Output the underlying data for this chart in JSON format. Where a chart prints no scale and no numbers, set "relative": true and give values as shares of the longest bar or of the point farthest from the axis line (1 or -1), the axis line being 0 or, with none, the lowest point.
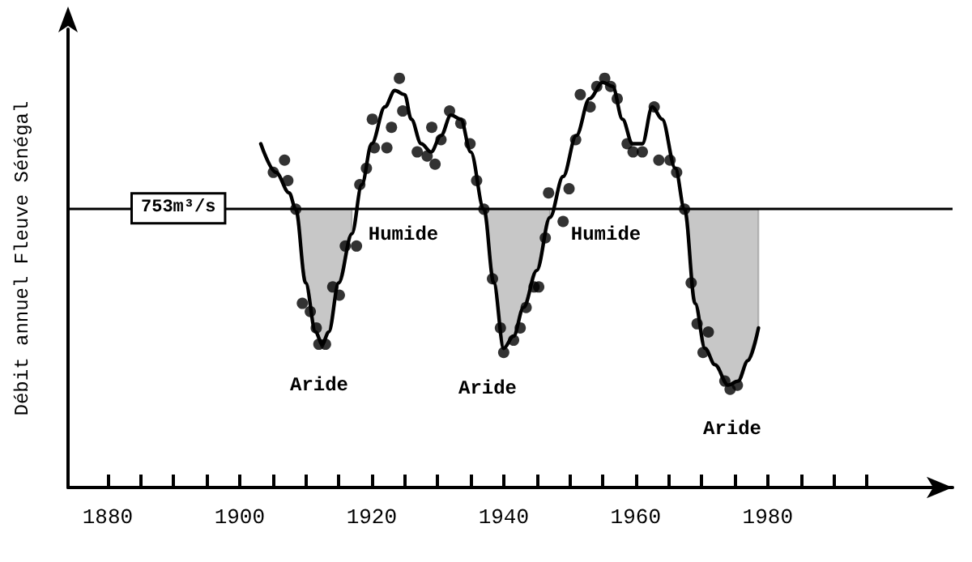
{
  "chart_data": {
    "type": "line",
    "relative": true,
    "ylabel": "Débit annuel Fleuve Sénégal",
    "xlim": [
      1874,
      2008
    ],
    "xticks": [
      1880,
      {
        "value": 1885,
        "label": null
      },
      {
        "value": 1890,
        "label": null
      },
      {
        "value": 1895,
        "label": null
      },
      1900,
      {
        "value": 1905,
        "label": null
      },
      {
        "value": 1910,
        "label": null
      },
      {
        "value": 1915,
        "label": null
      },
      1920,
      {
        "value": 1925,
        "label": null
      },
      {
        "value": 1930,
        "label": null
      },
      {
        "value": 1935,
        "label": null
      },
      1940,
      {
        "value": 1945,
        "label": null
      },
      {
        "value": 1950,
        "label": null
      },
      {
        "value": 1955,
        "label": null
      },
      1960,
      {
        "value": 1965,
        "label": null
      },
      {
        "value": 1970,
        "label": null
      },
      {
        "value": 1975,
        "label": null
      },
      1980,
      {
        "value": 1985,
        "label": null
      },
      {
        "value": 1990,
        "label": null
      },
      {
        "value": 1995,
        "label": null
      }
    ],
    "grid": false,
    "legend": false,
    "ref_lines": [
      {
        "axis": "y",
        "value": 0.68,
        "label": "753m³/s",
        "color": "#000000"
      }
    ],
    "annotations": [
      "Humide",
      "Humide",
      "Aride",
      "Aride",
      "Aride"
    ],
    "series": [
      {
        "type": "line",
        "color": "#000000",
        "marker": "none",
        "line_style": "solid",
        "x": [
          1903.2,
          1905.5,
          1907.5,
          1908.5,
          1910,
          1911.5,
          1912.5,
          1913.5,
          1915,
          1917,
          1918.5,
          1920,
          1922,
          1923.5,
          1925,
          1926,
          1927.5,
          1929,
          1930.5,
          1932,
          1933.5,
          1935,
          1937,
          1938.5,
          1940,
          1941.5,
          1943,
          1945,
          1947,
          1949,
          1951,
          1953,
          1955,
          1956.5,
          1958,
          1959.5,
          1961,
          1962.5,
          1964,
          1966,
          1967.4,
          1969,
          1970.5,
          1972,
          1974,
          1975.5,
          1977,
          1978.6
        ],
        "values": [
          0.84,
          0.77,
          0.72,
          0.68,
          0.5,
          0.38,
          0.35,
          0.38,
          0.5,
          0.62,
          0.74,
          0.84,
          0.93,
          0.97,
          0.96,
          0.9,
          0.84,
          0.82,
          0.86,
          0.91,
          0.9,
          0.82,
          0.68,
          0.5,
          0.34,
          0.37,
          0.44,
          0.53,
          0.66,
          0.76,
          0.86,
          0.95,
          0.99,
          0.98,
          0.9,
          0.84,
          0.84,
          0.93,
          0.9,
          0.78,
          0.68,
          0.45,
          0.34,
          0.3,
          0.25,
          0.26,
          0.31,
          0.39
        ],
        "lower": [
          null,
          null,
          null,
          0.68,
          0.5,
          0.38,
          0.35,
          0.38,
          0.5,
          0.62,
          null,
          null,
          null,
          null,
          null,
          null,
          null,
          null,
          null,
          null,
          null,
          null,
          0.68,
          0.5,
          0.34,
          0.37,
          0.44,
          0.53,
          0.66,
          null,
          null,
          null,
          null,
          null,
          null,
          null,
          null,
          null,
          null,
          null,
          0.68,
          0.45,
          0.34,
          0.3,
          0.25,
          0.26,
          0.31,
          0.39
        ],
        "upper": [
          null,
          null,
          null,
          0.68,
          0.68,
          0.68,
          0.68,
          0.68,
          0.68,
          0.68,
          null,
          null,
          null,
          null,
          null,
          null,
          null,
          null,
          null,
          null,
          null,
          null,
          0.68,
          0.68,
          0.68,
          0.68,
          0.68,
          0.68,
          0.68,
          null,
          null,
          null,
          null,
          null,
          null,
          null,
          null,
          null,
          null,
          null,
          0.68,
          0.68,
          0.68,
          0.68,
          0.68,
          0.68,
          0.68,
          0.68
        ]
      },
      {
        "type": "scatter",
        "color": "#000000",
        "marker": "circle",
        "x": [
          1906.8,
          1905.1,
          1907.3,
          1908.5,
          1909.5,
          1910.7,
          1911.6,
          1912,
          1913,
          1914.1,
          1915.1,
          1916,
          1917.7,
          1918.2,
          1919.2,
          1920.4,
          1922.3,
          1920.1,
          1923,
          1924.2,
          1924.7,
          1926.9,
          1928.4,
          1929.6,
          1929.1,
          1930.5,
          1931.8,
          1933.5,
          1934.9,
          1935.9,
          1937,
          1938.3,
          1939.5,
          1940,
          1941.5,
          1942.5,
          1943.4,
          1944.6,
          1945.3,
          1946.3,
          1949,
          1946.8,
          1949.9,
          1950.9,
          1951.6,
          1953.1,
          1954.1,
          1955.3,
          1956.2,
          1957.2,
          1958.7,
          1959.6,
          1961,
          1962.8,
          1963.5,
          1965.2,
          1966.2,
          1967.4,
          1968.4,
          1969.3,
          1971,
          1970.2,
          1973.5,
          1974.3,
          1975.4
        ],
        "values": [
          0.8,
          0.77,
          0.75,
          0.68,
          0.45,
          0.43,
          0.39,
          0.35,
          0.35,
          0.49,
          0.47,
          0.59,
          0.59,
          0.74,
          0.78,
          0.83,
          0.83,
          0.9,
          0.88,
          1,
          0.92,
          0.82,
          0.81,
          0.79,
          0.88,
          0.85,
          0.92,
          0.89,
          0.84,
          0.75,
          0.68,
          0.51,
          0.39,
          0.33,
          0.36,
          0.39,
          0.44,
          0.49,
          0.49,
          0.61,
          0.65,
          0.72,
          0.73,
          0.85,
          0.96,
          0.93,
          0.98,
          1,
          0.98,
          0.95,
          0.84,
          0.82,
          0.82,
          0.93,
          0.8,
          0.8,
          0.77,
          0.68,
          0.5,
          0.4,
          0.38,
          0.33,
          0.26,
          0.24,
          0.25
        ]
      }
    ]
  }
}
